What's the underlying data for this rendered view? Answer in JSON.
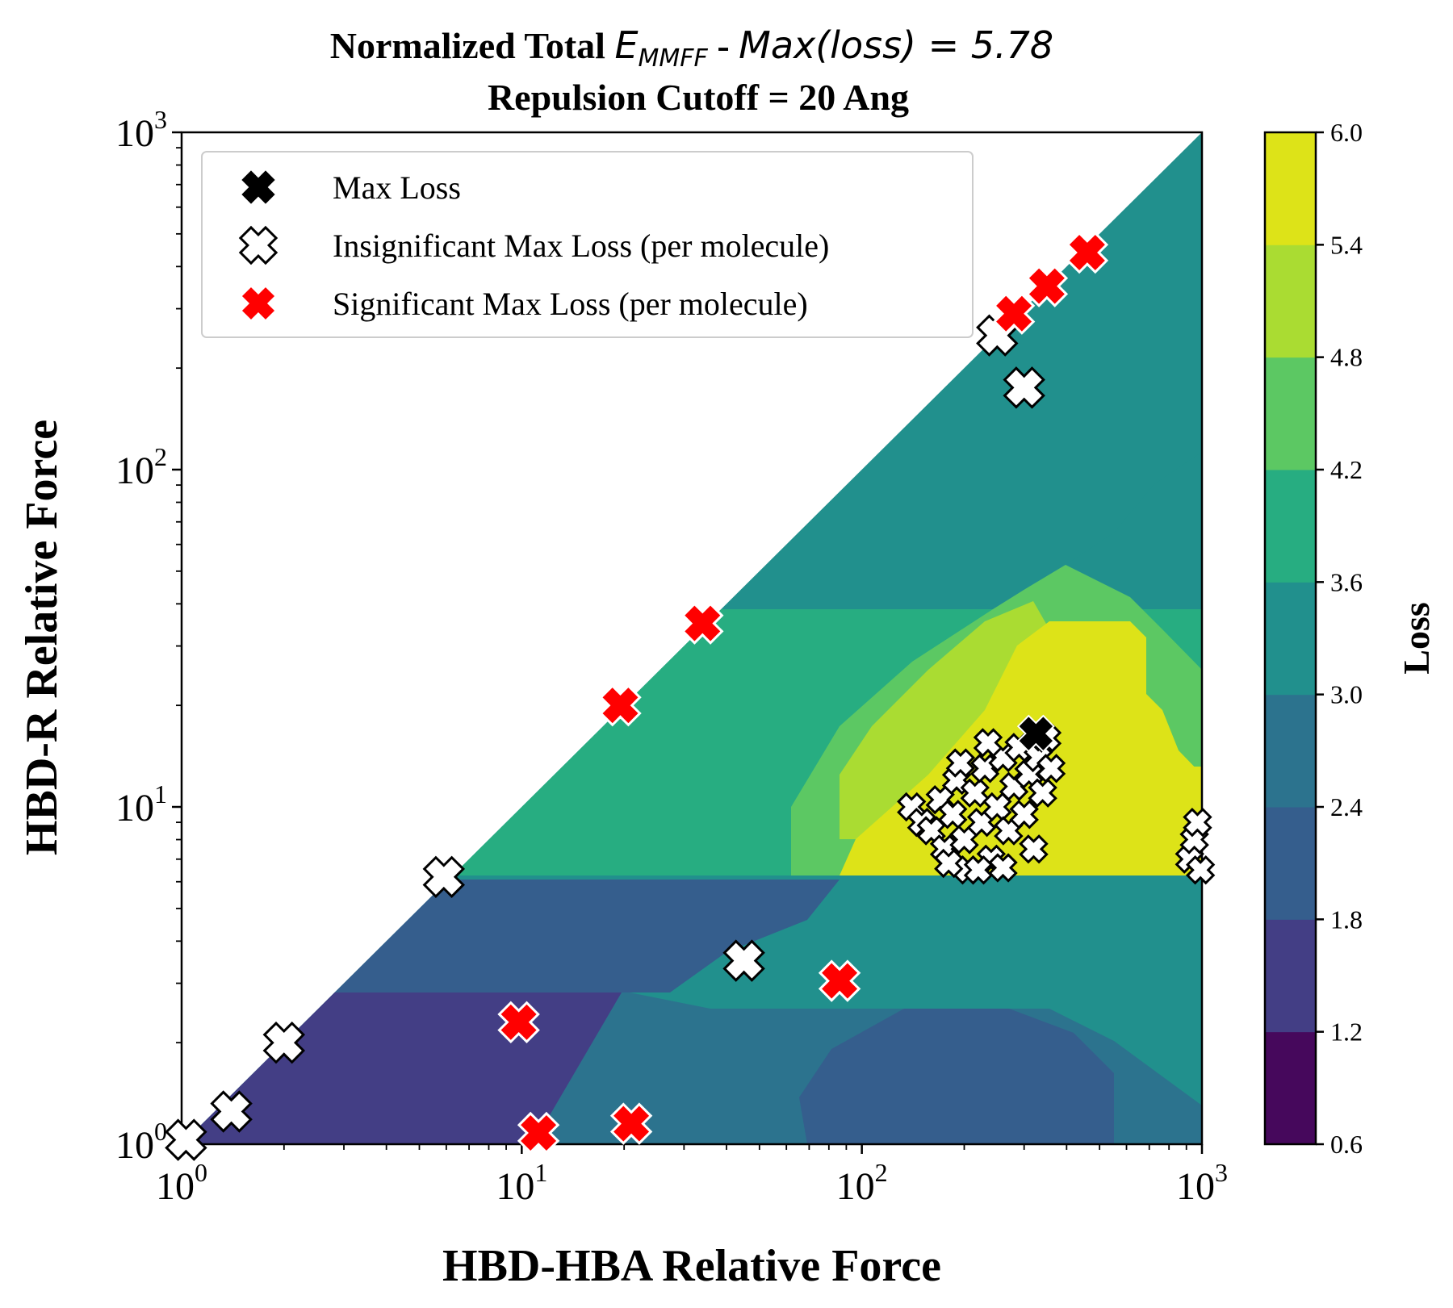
{
  "chart_data": {
    "type": "heatmap",
    "title": {
      "line1_prefix": "Normalized Total ",
      "line1_math_E": "E",
      "line1_math_sub": "MMFF",
      "line1_dash": " - ",
      "line1_math_expr": "Max(loss) = 5.78",
      "line2": "Repulsion Cutoff = 20 Ang"
    },
    "xlabel": "HBD-HBA Relative Force",
    "ylabel": "HBD-R Relative Force",
    "xscale": "log",
    "yscale": "log",
    "xlim": [
      1,
      1000
    ],
    "ylim": [
      1,
      1000
    ],
    "x_ticks": [
      {
        "value": 1,
        "base": "10",
        "exp": "0"
      },
      {
        "value": 10,
        "base": "10",
        "exp": "1"
      },
      {
        "value": 100,
        "base": "10",
        "exp": "2"
      },
      {
        "value": 1000,
        "base": "10",
        "exp": "3"
      }
    ],
    "y_ticks": [
      {
        "value": 1,
        "base": "10",
        "exp": "0"
      },
      {
        "value": 10,
        "base": "10",
        "exp": "1"
      },
      {
        "value": 100,
        "base": "10",
        "exp": "2"
      },
      {
        "value": 1000,
        "base": "10",
        "exp": "3"
      }
    ],
    "valid_region": "lower-right triangle (HBD-R ≤ HBD-HBA)",
    "colorbar": {
      "label": "Loss",
      "levels": [
        0.6,
        1.2,
        1.8,
        2.4,
        3.0,
        3.6,
        4.2,
        4.8,
        5.4,
        6.0
      ],
      "tick_labels": [
        "0.6",
        "1.2",
        "1.8",
        "2.4",
        "3.0",
        "3.6",
        "4.2",
        "4.8",
        "5.4",
        "6.0"
      ],
      "colors": [
        "#46085c",
        "#433e85",
        "#355e8d",
        "#2c738e",
        "#21908d",
        "#27ad81",
        "#5cc863",
        "#aadc32",
        "#dde318"
      ]
    },
    "contour_regions": [
      {
        "level": 1.5,
        "description": "violet band, HBD-R below about 2.7, HBD-HBA below about 20"
      },
      {
        "level": 2.1,
        "description": "dark blue band, HBD-R 2.7 to 6"
      },
      {
        "level": 2.7,
        "description": "teal-blue band along lower right"
      },
      {
        "level": 3.3,
        "description": "teal band, HBD-R above about 30"
      },
      {
        "level": 3.9,
        "description": "green band, HBD-R 6 to 30"
      },
      {
        "level": 4.5,
        "description": "light green region, HBD-HBA 60 to 1000"
      },
      {
        "level": 5.1,
        "description": "yellow-green region around HBD-HBA 100 to 400"
      },
      {
        "level": 5.7,
        "description": "yellow region, HBD-HBA 130 to 1000, HBD-R 6 to 20"
      }
    ],
    "legend": {
      "placement": "upper-left",
      "entries": [
        {
          "label": "Max Loss",
          "marker": "x-filled",
          "color": "#000000"
        },
        {
          "label": "Insignificant Max Loss (per molecule)",
          "marker": "x-filled",
          "color": "#ffffff",
          "edge": "#000000"
        },
        {
          "label": "Significant Max Loss (per molecule)",
          "marker": "x-filled",
          "color": "#ff0000",
          "edge": "#ffffff"
        }
      ]
    },
    "series": [
      {
        "name": "Max Loss",
        "points": [
          [
            325,
            16.5
          ]
        ]
      },
      {
        "name": "Insignificant Max Loss (per molecule)",
        "points": [
          [
            1.03,
            1.03
          ],
          [
            1.4,
            1.25
          ],
          [
            2.0,
            2.0
          ],
          [
            5.9,
            6.2
          ],
          [
            45,
            3.5
          ],
          [
            250,
            250
          ],
          [
            300,
            175
          ],
          [
            140,
            10
          ],
          [
            150,
            9
          ],
          [
            160,
            8.5
          ],
          [
            170,
            10.5
          ],
          [
            175,
            7.5
          ],
          [
            185,
            9.5
          ],
          [
            190,
            12
          ],
          [
            200,
            8
          ],
          [
            205,
            6.5
          ],
          [
            215,
            11
          ],
          [
            225,
            9
          ],
          [
            230,
            13
          ],
          [
            240,
            7
          ],
          [
            250,
            10
          ],
          [
            260,
            14
          ],
          [
            270,
            8.5
          ],
          [
            280,
            11.5
          ],
          [
            290,
            15
          ],
          [
            300,
            9.5
          ],
          [
            310,
            12.5
          ],
          [
            320,
            7.5
          ],
          [
            330,
            14
          ],
          [
            340,
            11
          ],
          [
            350,
            16
          ],
          [
            360,
            13
          ],
          [
            180,
            6.8
          ],
          [
            220,
            6.5
          ],
          [
            260,
            6.6
          ],
          [
            195,
            13.5
          ],
          [
            235,
            15.5
          ],
          [
            920,
            7
          ],
          [
            950,
            8
          ],
          [
            970,
            9
          ],
          [
            990,
            6.5
          ]
        ]
      },
      {
        "name": "Significant Max Loss (per molecule)",
        "points": [
          [
            280,
            290
          ],
          [
            350,
            350
          ],
          [
            460,
            440
          ],
          [
            34,
            35
          ],
          [
            19.5,
            20
          ],
          [
            9.8,
            2.3
          ],
          [
            11.2,
            1.08
          ],
          [
            21,
            1.15
          ],
          [
            86,
            3.05
          ]
        ]
      }
    ]
  }
}
